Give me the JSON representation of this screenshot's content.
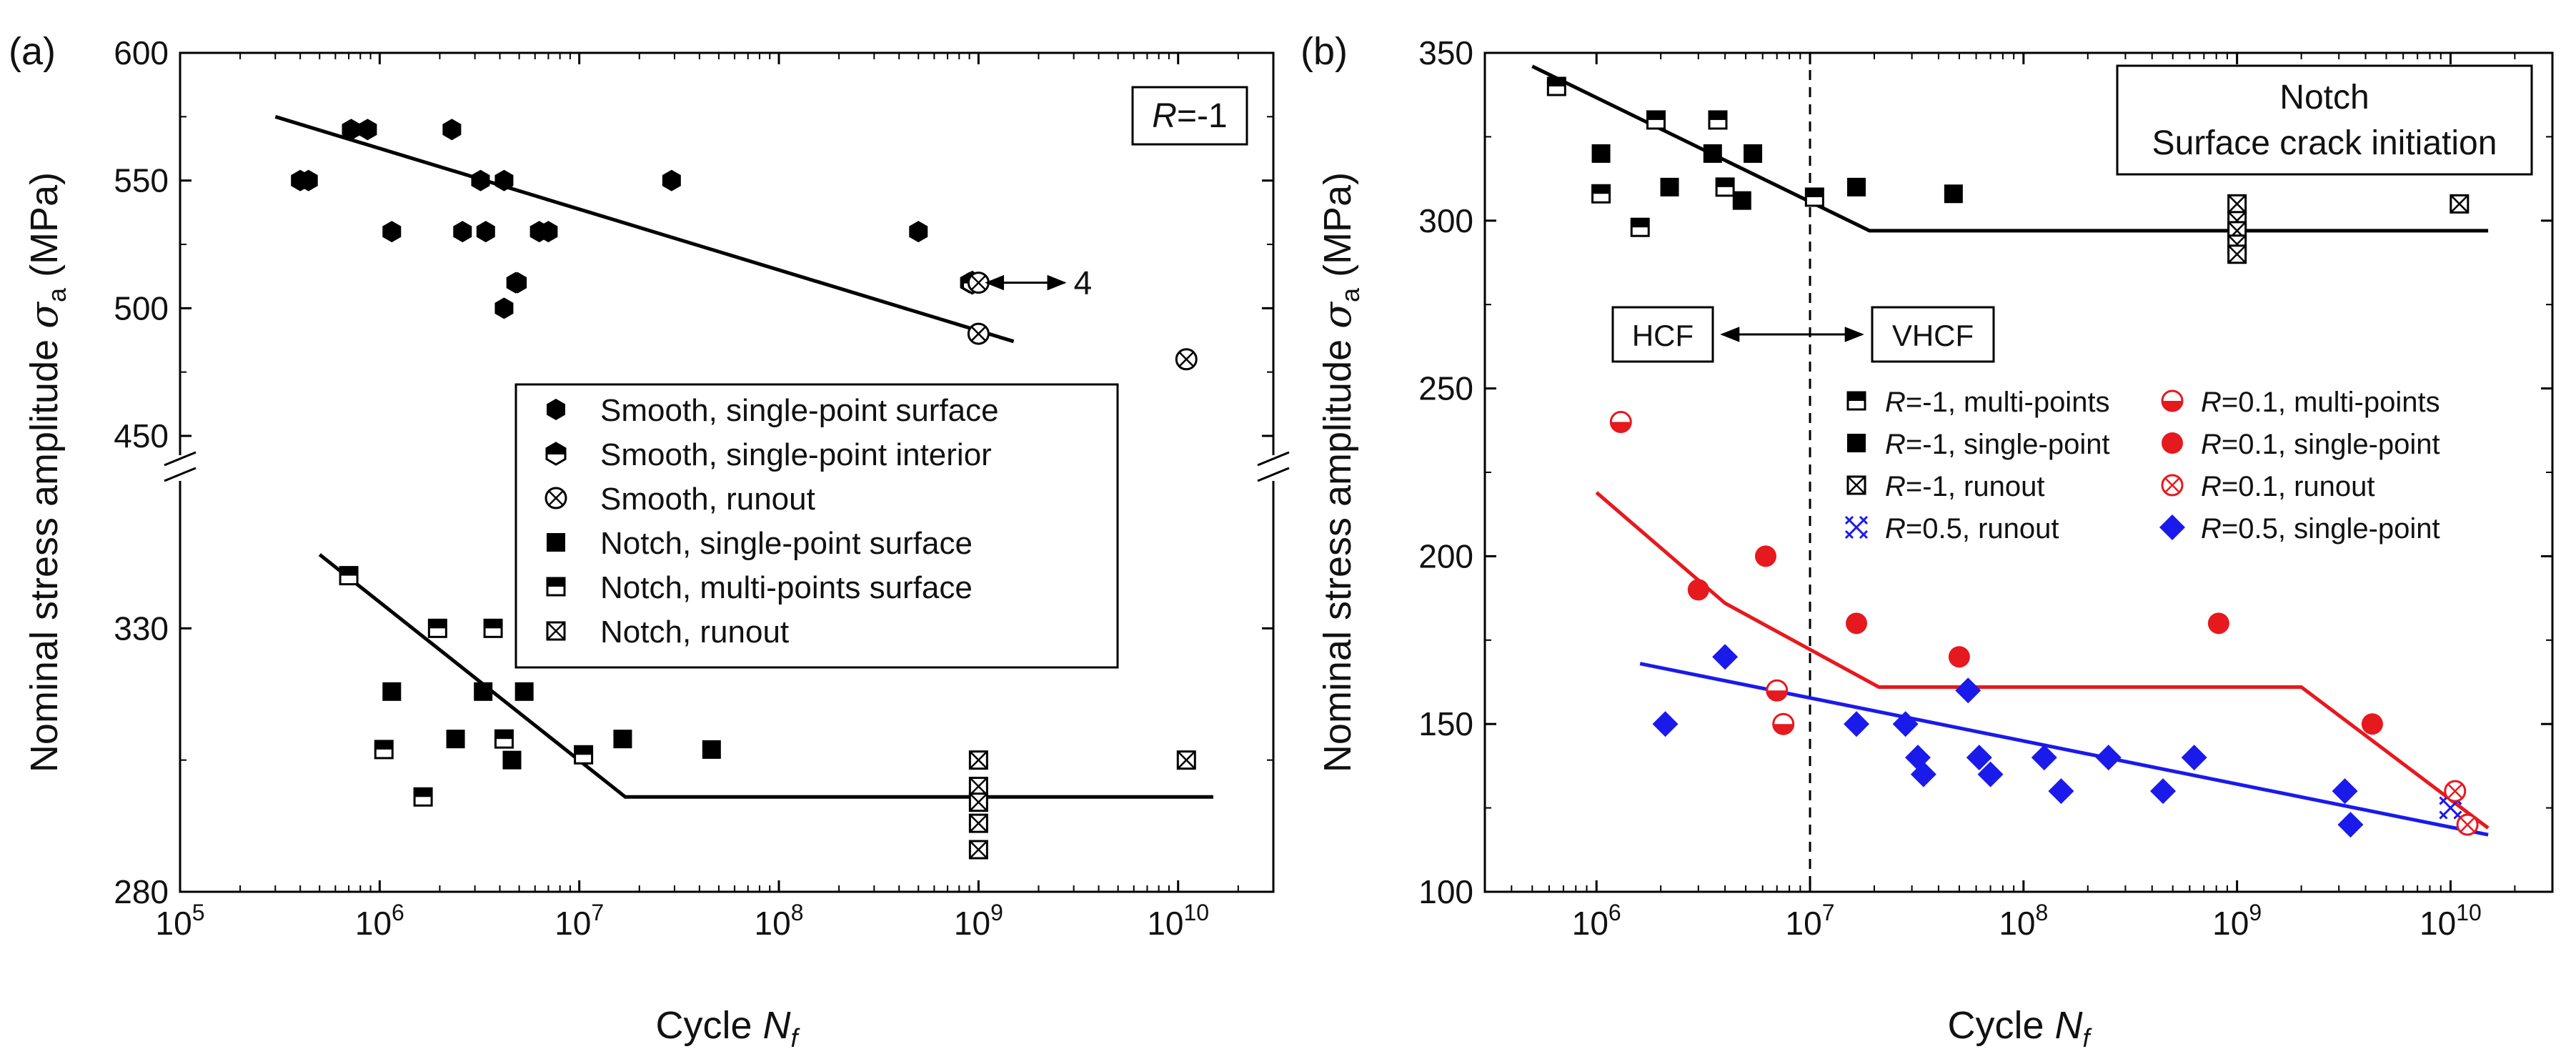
{
  "chart_data": [
    {
      "type": "scatter",
      "panel_label": "(a)",
      "xlabel_main": "Cycle ",
      "xlabel_var": "N",
      "xlabel_sub": "f",
      "ylabel_main": "Nominal stress amplitude ",
      "ylabel_sym": "σ",
      "ylabel_sub": "a",
      "ylabel_unit": " (MPa)",
      "x_scale": "log",
      "xlim": [
        100000,
        30000000000
      ],
      "x_tick_base": "10",
      "x_ticks": [
        {
          "exp": "5",
          "value": 100000
        },
        {
          "exp": "6",
          "value": 1000000
        },
        {
          "exp": "7",
          "value": 10000000
        },
        {
          "exp": "8",
          "value": 100000000
        },
        {
          "exp": "9",
          "value": 1000000000
        },
        {
          "exp": "10",
          "value": 10000000000
        }
      ],
      "y_axis_break": true,
      "y_upper": {
        "range": [
          450,
          600
        ],
        "ticks": [
          "450",
          "500",
          "550",
          "600"
        ]
      },
      "y_lower": {
        "range": [
          280,
          355
        ],
        "ticks": [
          "280",
          "330"
        ]
      },
      "grid": false,
      "annotation_box": {
        "italic": "R",
        "text": "=-1"
      },
      "arrow_label": "4",
      "legend_position": "lower-right",
      "series": [
        {
          "name": "Smooth, single-point surface",
          "marker": "hexagon-filled",
          "axis": "upper",
          "points": [
            [
              400000,
              550
            ],
            [
              440000,
              550
            ],
            [
              720000,
              570
            ],
            [
              870000,
              570
            ],
            [
              1150000,
              530
            ],
            [
              2300000,
              570
            ],
            [
              2600000,
              530
            ],
            [
              3200000,
              550
            ],
            [
              3400000,
              530
            ],
            [
              4200000,
              550
            ],
            [
              4200000,
              500
            ],
            [
              4800000,
              510
            ],
            [
              4900000,
              510
            ],
            [
              6300000,
              530
            ],
            [
              7000000,
              530
            ],
            [
              29000000,
              550
            ],
            [
              500000000,
              530
            ],
            [
              900000000,
              510
            ]
          ]
        },
        {
          "name": "Smooth, single-point interior",
          "marker": "hexagon-half",
          "axis": "upper",
          "points": [
            [
              930000000,
              510
            ]
          ]
        },
        {
          "name": "Smooth, runout",
          "marker": "circle-cross",
          "axis": "upper",
          "points": [
            [
              1000000000,
              510
            ],
            [
              1000000000,
              490
            ],
            [
              11000000000,
              480
            ]
          ]
        },
        {
          "name": "Notch, single-point surface",
          "marker": "square-filled",
          "axis": "lower",
          "points": [
            [
              1150000,
              318
            ],
            [
              2400000,
              309
            ],
            [
              3300000,
              318
            ],
            [
              4600000,
              305
            ],
            [
              5300000,
              318
            ],
            [
              16500000,
              309
            ],
            [
              46000000,
              307
            ]
          ]
        },
        {
          "name": "Notch, multi-points surface",
          "marker": "square-half",
          "axis": "lower",
          "points": [
            [
              700000,
              340
            ],
            [
              1050000,
              307
            ],
            [
              1650000,
              298
            ],
            [
              1950000,
              330
            ],
            [
              3700000,
              330
            ],
            [
              4200000,
              309
            ],
            [
              10500000,
              306
            ]
          ]
        },
        {
          "name": "Notch, runout",
          "marker": "square-cross",
          "axis": "lower",
          "points": [
            [
              1000000000,
              305
            ],
            [
              1000000000,
              300
            ],
            [
              1000000000,
              297
            ],
            [
              1000000000,
              293
            ],
            [
              1000000000,
              288
            ],
            [
              11000000000,
              305
            ]
          ]
        }
      ],
      "fit_lines": [
        {
          "axis": "upper",
          "points": [
            [
              300000,
              575
            ],
            [
              1500000000,
              487
            ]
          ]
        },
        {
          "axis": "lower",
          "points": [
            [
              500000,
              344
            ],
            [
              17000000,
              298
            ],
            [
              15000000000,
              298
            ]
          ]
        }
      ]
    },
    {
      "type": "scatter",
      "panel_label": "(b)",
      "xlabel_main": "Cycle ",
      "xlabel_var": "N",
      "xlabel_sub": "f",
      "ylabel_main": "Nominal stress amplitude ",
      "ylabel_sym": "σ",
      "ylabel_sub": "a",
      "ylabel_unit": " (MPa)",
      "x_scale": "log",
      "xlim": [
        300000,
        30000000000
      ],
      "ylim": [
        100,
        350
      ],
      "x_tick_base": "10",
      "x_ticks": [
        {
          "exp": "6",
          "value": 1000000
        },
        {
          "exp": "7",
          "value": 10000000
        },
        {
          "exp": "8",
          "value": 100000000
        },
        {
          "exp": "9",
          "value": 1000000000
        },
        {
          "exp": "10",
          "value": 10000000000
        }
      ],
      "y_ticks": [
        "100",
        "150",
        "200",
        "250",
        "300",
        "350"
      ],
      "grid": false,
      "vertical_line_x": 10000000,
      "annotation_box_lines": [
        "Notch",
        "Surface crack initiation"
      ],
      "hcf_label": "HCF",
      "vhcf_label": "VHCF",
      "legend_position": "center-right",
      "colors": {
        "black": "#000000",
        "red": "#e6191e",
        "blue": "#1a1aeb"
      },
      "series": [
        {
          "name_italic": "R",
          "name": "=-1, multi-points",
          "marker": "square-half",
          "color": "#000000",
          "points": [
            [
              650000,
              340
            ],
            [
              1050000,
              308
            ],
            [
              1600000,
              298
            ],
            [
              1900000,
              330
            ],
            [
              3700000,
              330
            ],
            [
              4000000,
              310
            ],
            [
              10500000,
              307
            ]
          ]
        },
        {
          "name_italic": "R",
          "name": "=-1, single-point",
          "marker": "square-filled",
          "color": "#000000",
          "points": [
            [
              1050000,
              320
            ],
            [
              2200000,
              310
            ],
            [
              3500000,
              320
            ],
            [
              4800000,
              306
            ],
            [
              5400000,
              320
            ],
            [
              16500000,
              310
            ],
            [
              47000000,
              308
            ]
          ]
        },
        {
          "name_italic": "R",
          "name": "=-1, runout",
          "marker": "square-cross",
          "color": "#000000",
          "points": [
            [
              1000000000,
              305
            ],
            [
              1000000000,
              300
            ],
            [
              1000000000,
              297
            ],
            [
              1000000000,
              293
            ],
            [
              1000000000,
              290
            ],
            [
              11000000000,
              305
            ]
          ]
        },
        {
          "name_italic": "R",
          "name": "=0.5, runout",
          "marker": "x-cross",
          "color": "#1a1aeb",
          "points": [
            [
              10000000000,
              125
            ]
          ]
        },
        {
          "name_italic": "R",
          "name": "=0.1, multi-points",
          "marker": "circle-half",
          "color": "#e6191e",
          "points": [
            [
              1300000,
              240
            ],
            [
              7000000,
              160
            ],
            [
              7500000,
              150
            ]
          ]
        },
        {
          "name_italic": "R",
          "name": "=0.1, single-point",
          "marker": "circle-filled",
          "color": "#e6191e",
          "points": [
            [
              3000000,
              190
            ],
            [
              6200000,
              200
            ],
            [
              16500000,
              180
            ],
            [
              50000000,
              170
            ],
            [
              820000000,
              180
            ],
            [
              4300000000,
              150
            ]
          ]
        },
        {
          "name_italic": "R",
          "name": "=0.1, runout",
          "marker": "circle-cross",
          "color": "#e6191e",
          "points": [
            [
              10500000000,
              130
            ],
            [
              12000000000,
              120
            ]
          ]
        },
        {
          "name_italic": "R",
          "name": "=0.5, single-point",
          "marker": "diamond-filled",
          "color": "#1a1aeb",
          "points": [
            [
              2100000,
              150
            ],
            [
              4000000,
              170
            ],
            [
              16500000,
              150
            ],
            [
              28000000,
              150
            ],
            [
              32000000,
              140
            ],
            [
              34000000,
              135
            ],
            [
              55000000,
              160
            ],
            [
              62000000,
              140
            ],
            [
              70000000,
              135
            ],
            [
              125000000,
              140
            ],
            [
              150000000,
              130
            ],
            [
              250000000,
              140
            ],
            [
              450000000,
              130
            ],
            [
              630000000,
              140
            ],
            [
              3200000000,
              130
            ],
            [
              3400000000,
              120
            ]
          ]
        }
      ],
      "fit_lines": [
        {
          "color": "#000000",
          "points": [
            [
              500000,
              346
            ],
            [
              19000000,
              297
            ],
            [
              15000000000,
              297
            ]
          ]
        },
        {
          "color": "#e6191e",
          "points": [
            [
              1000000,
              219
            ],
            [
              4000000,
              186
            ],
            [
              21000000,
              161
            ],
            [
              2000000000,
              161
            ],
            [
              15000000000,
              119
            ]
          ]
        },
        {
          "color": "#1a1aeb",
          "points": [
            [
              1600000,
              168
            ],
            [
              15000000000,
              117
            ]
          ]
        }
      ]
    }
  ]
}
